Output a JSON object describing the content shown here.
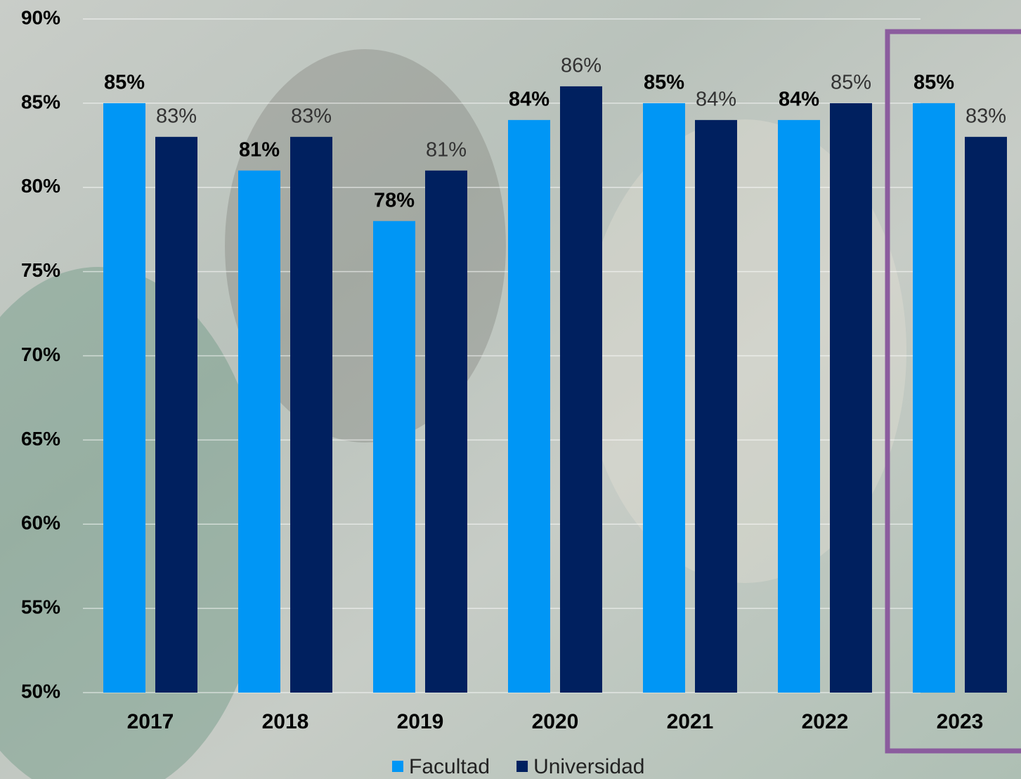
{
  "chart_data": {
    "type": "bar",
    "categories": [
      "2017",
      "2018",
      "2019",
      "2020",
      "2021",
      "2022",
      "2023"
    ],
    "series": [
      {
        "name": "Facultad",
        "color": "#0096f5",
        "values": [
          85,
          81,
          78,
          84,
          85,
          84,
          85
        ],
        "value_labels": [
          "85%",
          "81%",
          "78%",
          "84%",
          "85%",
          "84%",
          "85%"
        ]
      },
      {
        "name": "Universidad",
        "color": "#00205f",
        "values": [
          83,
          83,
          81,
          86,
          84,
          85,
          83
        ],
        "value_labels": [
          "83%",
          "83%",
          "81%",
          "86%",
          "84%",
          "85%",
          "83%"
        ]
      }
    ],
    "ylim": [
      50,
      90
    ],
    "yticks": [
      {
        "value": 50,
        "label": "50%"
      },
      {
        "value": 55,
        "label": "55%"
      },
      {
        "value": 60,
        "label": "60%"
      },
      {
        "value": 65,
        "label": "65%"
      },
      {
        "value": 70,
        "label": "70%"
      },
      {
        "value": 75,
        "label": "75%"
      },
      {
        "value": 80,
        "label": "80%"
      },
      {
        "value": 85,
        "label": "85%"
      },
      {
        "value": 90,
        "label": "90%"
      }
    ],
    "grid": true,
    "legend": "bottom"
  }
}
